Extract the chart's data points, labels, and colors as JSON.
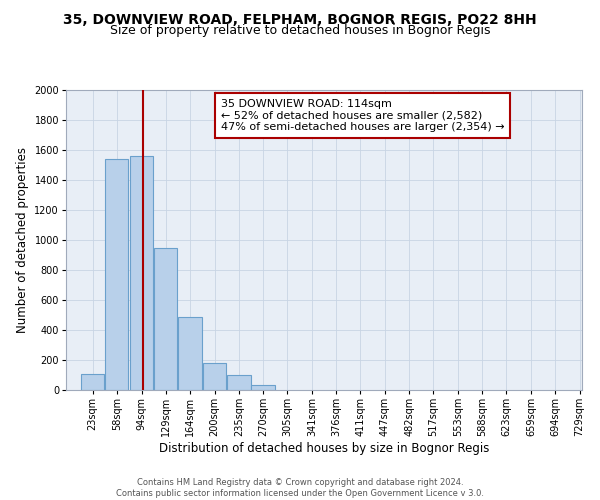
{
  "title": "35, DOWNVIEW ROAD, FELPHAM, BOGNOR REGIS, PO22 8HH",
  "subtitle": "Size of property relative to detached houses in Bognor Regis",
  "xlabel": "Distribution of detached houses by size in Bognor Regis",
  "ylabel": "Number of detached properties",
  "bin_labels": [
    "23sqm",
    "58sqm",
    "94sqm",
    "129sqm",
    "164sqm",
    "200sqm",
    "235sqm",
    "270sqm",
    "305sqm",
    "341sqm",
    "376sqm",
    "411sqm",
    "447sqm",
    "482sqm",
    "517sqm",
    "553sqm",
    "588sqm",
    "623sqm",
    "659sqm",
    "694sqm",
    "729sqm"
  ],
  "bin_edges": [
    23,
    58,
    94,
    129,
    164,
    200,
    235,
    270,
    305,
    341,
    376,
    411,
    447,
    482,
    517,
    553,
    588,
    623,
    659,
    694,
    729
  ],
  "bar_heights": [
    110,
    1540,
    1560,
    950,
    490,
    180,
    100,
    35,
    0,
    0,
    0,
    0,
    0,
    0,
    0,
    0,
    0,
    0,
    0,
    0
  ],
  "bar_color": "#b8d0ea",
  "bar_edgecolor": "#6aa0cc",
  "bar_linewidth": 0.8,
  "grid_color": "#c8d4e4",
  "background_color": "#e8eef6",
  "ylim": [
    0,
    2000
  ],
  "yticks": [
    0,
    200,
    400,
    600,
    800,
    1000,
    1200,
    1400,
    1600,
    1800,
    2000
  ],
  "property_line_x": 114,
  "vline_color": "#aa0000",
  "annotation_text": "35 DOWNVIEW ROAD: 114sqm\n← 52% of detached houses are smaller (2,582)\n47% of semi-detached houses are larger (2,354) →",
  "annotation_box_color": "white",
  "annotation_box_edgecolor": "#aa0000",
  "footer_text": "Contains HM Land Registry data © Crown copyright and database right 2024.\nContains public sector information licensed under the Open Government Licence v 3.0.",
  "title_fontsize": 10,
  "subtitle_fontsize": 9,
  "xlabel_fontsize": 8.5,
  "ylabel_fontsize": 8.5,
  "tick_fontsize": 7,
  "annotation_fontsize": 8,
  "footer_fontsize": 6
}
